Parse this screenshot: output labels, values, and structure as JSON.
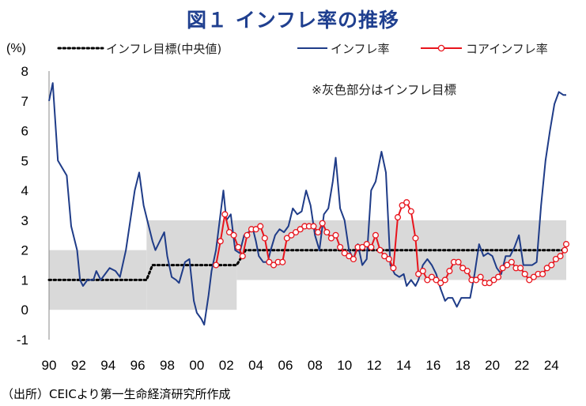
{
  "title": "図１ インフレ率の推移",
  "source": "（出所）CEICより第一生命経済研究所作成",
  "chart_data": {
    "type": "line",
    "unit": "(%)",
    "ylim": [
      -1,
      8
    ],
    "yticks": [
      -1,
      0,
      1,
      2,
      3,
      4,
      5,
      6,
      7,
      8
    ],
    "xlim": [
      1990,
      2025
    ],
    "xtick_labels": [
      "90",
      "92",
      "94",
      "96",
      "98",
      "00",
      "02",
      "04",
      "06",
      "08",
      "10",
      "12",
      "14",
      "16",
      "18",
      "20",
      "22",
      "24"
    ],
    "note": "※灰色部分はインフレ目標",
    "legend": [
      "インフレ目標(中央値)",
      "インフレ率",
      "コアインフレ率"
    ],
    "colors": {
      "headline": "#1F3C88",
      "core": "#E8141C",
      "target": "#000000",
      "band": "#D9D9D9",
      "negative_tick": "#E8141C"
    },
    "target_band": [
      {
        "from": 1990.0,
        "to": 1996.6,
        "low": 0.0,
        "high": 2.0
      },
      {
        "from": 1996.6,
        "to": 2002.7,
        "low": 0.0,
        "high": 3.0
      },
      {
        "from": 2002.7,
        "to": 2025.0,
        "low": 1.0,
        "high": 3.0
      }
    ],
    "target_mid": [
      [
        1990.0,
        1.0
      ],
      [
        1996.6,
        1.0
      ],
      [
        1997.0,
        1.5
      ],
      [
        2002.7,
        1.5
      ],
      [
        2003.3,
        2.0
      ],
      [
        2025.0,
        2.0
      ]
    ],
    "headline": [
      [
        1990.0,
        7.0
      ],
      [
        1990.25,
        7.6
      ],
      [
        1990.6,
        5.0
      ],
      [
        1991.2,
        4.5
      ],
      [
        1991.5,
        2.8
      ],
      [
        1991.9,
        2.0
      ],
      [
        1992.1,
        1.0
      ],
      [
        1992.3,
        0.8
      ],
      [
        1992.6,
        1.0
      ],
      [
        1993.0,
        1.0
      ],
      [
        1993.2,
        1.3
      ],
      [
        1993.5,
        1.0
      ],
      [
        1993.8,
        1.2
      ],
      [
        1994.1,
        1.4
      ],
      [
        1994.5,
        1.3
      ],
      [
        1994.8,
        1.1
      ],
      [
        1995.2,
        2.0
      ],
      [
        1995.5,
        3.0
      ],
      [
        1995.8,
        4.0
      ],
      [
        1996.1,
        4.6
      ],
      [
        1996.4,
        3.5
      ],
      [
        1996.7,
        2.9
      ],
      [
        1997.0,
        2.3
      ],
      [
        1997.2,
        2.0
      ],
      [
        1997.5,
        2.3
      ],
      [
        1997.8,
        2.6
      ],
      [
        1998.0,
        1.8
      ],
      [
        1998.3,
        1.1
      ],
      [
        1998.6,
        1.0
      ],
      [
        1998.8,
        0.9
      ],
      [
        1999.2,
        1.6
      ],
      [
        1999.5,
        1.7
      ],
      [
        1999.8,
        0.3
      ],
      [
        2000.0,
        -0.1
      ],
      [
        2000.3,
        -0.3
      ],
      [
        2000.5,
        -0.5
      ],
      [
        2000.8,
        0.5
      ],
      [
        2001.0,
        1.3
      ],
      [
        2001.3,
        2.0
      ],
      [
        2001.5,
        2.8
      ],
      [
        2001.8,
        4.0
      ],
      [
        2002.0,
        3.0
      ],
      [
        2002.3,
        3.2
      ],
      [
        2002.6,
        2.0
      ],
      [
        2002.9,
        1.9
      ],
      [
        2003.2,
        2.5
      ],
      [
        2003.5,
        2.6
      ],
      [
        2003.8,
        2.7
      ],
      [
        2004.0,
        2.3
      ],
      [
        2004.2,
        1.8
      ],
      [
        2004.5,
        1.6
      ],
      [
        2004.8,
        1.6
      ],
      [
        2005.0,
        2.0
      ],
      [
        2005.3,
        2.5
      ],
      [
        2005.6,
        2.7
      ],
      [
        2005.9,
        2.6
      ],
      [
        2006.2,
        2.8
      ],
      [
        2006.5,
        3.4
      ],
      [
        2006.8,
        3.2
      ],
      [
        2007.1,
        3.3
      ],
      [
        2007.4,
        4.0
      ],
      [
        2007.7,
        3.5
      ],
      [
        2008.0,
        2.5
      ],
      [
        2008.3,
        2.0
      ],
      [
        2008.6,
        3.2
      ],
      [
        2008.9,
        3.4
      ],
      [
        2009.2,
        4.3
      ],
      [
        2009.4,
        5.1
      ],
      [
        2009.7,
        3.4
      ],
      [
        2010.0,
        3.0
      ],
      [
        2010.3,
        2.0
      ],
      [
        2010.6,
        1.7
      ],
      [
        2010.9,
        2.2
      ],
      [
        2011.2,
        1.5
      ],
      [
        2011.5,
        1.7
      ],
      [
        2011.8,
        4.0
      ],
      [
        2012.1,
        4.3
      ],
      [
        2012.5,
        5.3
      ],
      [
        2012.8,
        4.6
      ],
      [
        2013.1,
        1.5
      ],
      [
        2013.4,
        1.2
      ],
      [
        2013.7,
        1.1
      ],
      [
        2014.0,
        1.2
      ],
      [
        2014.2,
        0.8
      ],
      [
        2014.5,
        1.0
      ],
      [
        2014.8,
        0.8
      ],
      [
        2015.0,
        1.0
      ],
      [
        2015.3,
        1.5
      ],
      [
        2015.6,
        1.7
      ],
      [
        2015.9,
        1.5
      ],
      [
        2016.2,
        1.2
      ],
      [
        2016.5,
        0.7
      ],
      [
        2016.8,
        0.3
      ],
      [
        2017.0,
        0.4
      ],
      [
        2017.3,
        0.4
      ],
      [
        2017.6,
        0.1
      ],
      [
        2017.9,
        0.4
      ],
      [
        2018.2,
        0.4
      ],
      [
        2018.5,
        0.4
      ],
      [
        2018.8,
        1.2
      ],
      [
        2019.1,
        2.2
      ],
      [
        2019.4,
        1.8
      ],
      [
        2019.7,
        1.9
      ],
      [
        2020.0,
        1.8
      ],
      [
        2020.3,
        1.4
      ],
      [
        2020.6,
        1.2
      ],
      [
        2020.9,
        1.8
      ],
      [
        2021.2,
        1.8
      ],
      [
        2021.5,
        2.1
      ],
      [
        2021.8,
        2.5
      ],
      [
        2022.1,
        1.5
      ],
      [
        2022.4,
        1.5
      ],
      [
        2022.7,
        1.5
      ],
      [
        2023.0,
        1.6
      ],
      [
        2023.3,
        3.5
      ],
      [
        2023.6,
        5.0
      ],
      [
        2023.9,
        6.0
      ],
      [
        2024.2,
        6.9
      ],
      [
        2024.5,
        7.3
      ],
      [
        2024.8,
        7.2
      ],
      [
        2025.0,
        7.2
      ]
    ],
    "core": [
      [
        2001.3,
        1.5
      ],
      [
        2001.6,
        2.3
      ],
      [
        2001.9,
        3.2
      ],
      [
        2002.2,
        2.6
      ],
      [
        2002.5,
        2.5
      ],
      [
        2002.8,
        2.1
      ],
      [
        2003.1,
        1.8
      ],
      [
        2003.4,
        2.5
      ],
      [
        2003.7,
        2.7
      ],
      [
        2004.0,
        2.7
      ],
      [
        2004.3,
        2.8
      ],
      [
        2004.6,
        2.4
      ],
      [
        2004.9,
        1.6
      ],
      [
        2005.2,
        1.5
      ],
      [
        2005.5,
        1.6
      ],
      [
        2005.8,
        1.6
      ],
      [
        2006.1,
        2.4
      ],
      [
        2006.4,
        2.5
      ],
      [
        2006.7,
        2.6
      ],
      [
        2007.0,
        2.7
      ],
      [
        2007.3,
        2.8
      ],
      [
        2007.6,
        2.8
      ],
      [
        2007.9,
        2.8
      ],
      [
        2008.2,
        2.6
      ],
      [
        2008.5,
        2.9
      ],
      [
        2008.8,
        2.6
      ],
      [
        2009.1,
        2.4
      ],
      [
        2009.4,
        2.5
      ],
      [
        2009.7,
        2.1
      ],
      [
        2010.0,
        1.9
      ],
      [
        2010.3,
        1.8
      ],
      [
        2010.6,
        1.7
      ],
      [
        2010.9,
        2.1
      ],
      [
        2011.2,
        2.1
      ],
      [
        2011.5,
        2.2
      ],
      [
        2011.8,
        2.1
      ],
      [
        2012.1,
        2.5
      ],
      [
        2012.4,
        2.0
      ],
      [
        2012.7,
        1.8
      ],
      [
        2013.0,
        1.7
      ],
      [
        2013.3,
        1.4
      ],
      [
        2013.6,
        3.1
      ],
      [
        2013.9,
        3.5
      ],
      [
        2014.2,
        3.6
      ],
      [
        2014.5,
        3.3
      ],
      [
        2014.8,
        2.4
      ],
      [
        2015.0,
        1.2
      ],
      [
        2015.3,
        1.3
      ],
      [
        2015.6,
        1.0
      ],
      [
        2015.9,
        1.1
      ],
      [
        2016.2,
        1.0
      ],
      [
        2016.5,
        0.9
      ],
      [
        2016.8,
        1.0
      ],
      [
        2017.1,
        1.3
      ],
      [
        2017.4,
        1.6
      ],
      [
        2017.7,
        1.6
      ],
      [
        2018.0,
        1.4
      ],
      [
        2018.3,
        1.3
      ],
      [
        2018.6,
        1.0
      ],
      [
        2018.9,
        1.0
      ],
      [
        2019.2,
        1.1
      ],
      [
        2019.5,
        0.9
      ],
      [
        2019.8,
        0.9
      ],
      [
        2020.1,
        1.0
      ],
      [
        2020.4,
        1.1
      ],
      [
        2020.7,
        1.4
      ],
      [
        2021.0,
        1.5
      ],
      [
        2021.3,
        1.6
      ],
      [
        2021.6,
        1.4
      ],
      [
        2021.9,
        1.4
      ],
      [
        2022.2,
        1.2
      ],
      [
        2022.5,
        1.0
      ],
      [
        2022.8,
        1.1
      ],
      [
        2023.1,
        1.2
      ],
      [
        2023.4,
        1.2
      ],
      [
        2023.7,
        1.4
      ],
      [
        2024.0,
        1.5
      ],
      [
        2024.3,
        1.7
      ],
      [
        2024.6,
        1.8
      ],
      [
        2024.9,
        2.0
      ],
      [
        2025.0,
        2.2
      ]
    ]
  }
}
